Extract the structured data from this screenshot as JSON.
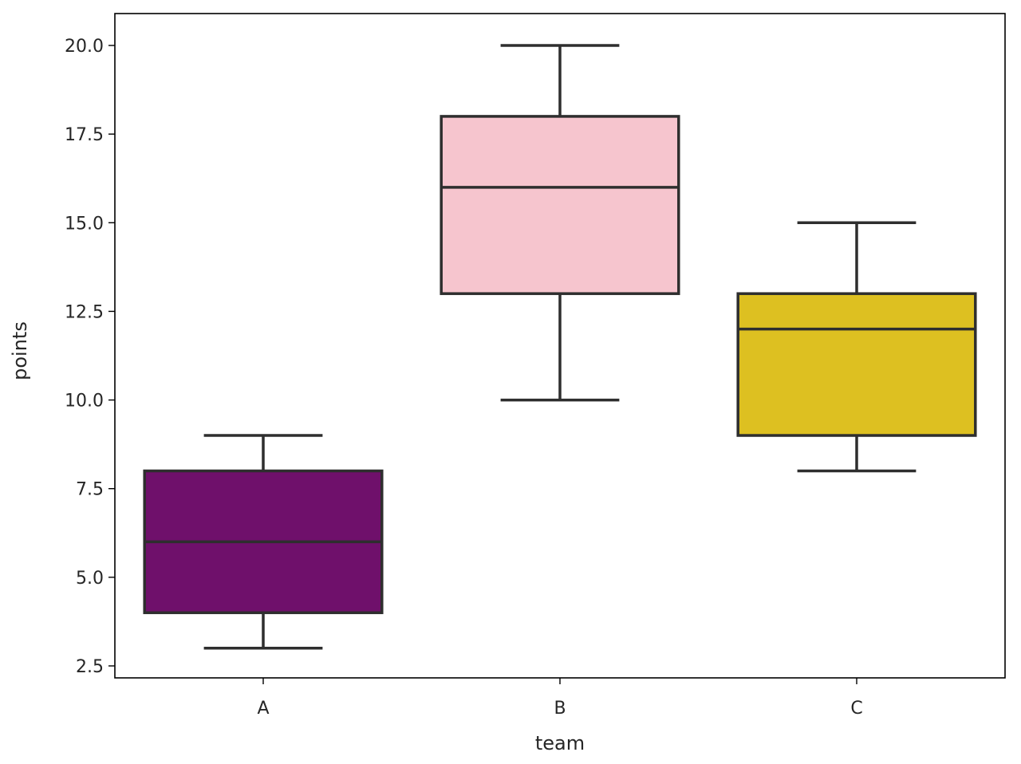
{
  "chart_data": {
    "type": "box",
    "title": "",
    "xlabel": "team",
    "ylabel": "points",
    "categories": [
      "A",
      "B",
      "C"
    ],
    "ylim": [
      2.16,
      20.9
    ],
    "yticks": [
      2.5,
      5.0,
      7.5,
      10.0,
      12.5,
      15.0,
      17.5,
      20.0
    ],
    "ytick_labels": [
      "2.5",
      "5.0",
      "7.5",
      "10.0",
      "12.5",
      "15.0",
      "17.5",
      "20.0"
    ],
    "grid": false,
    "legend": null,
    "series": [
      {
        "name": "A",
        "whisker_low": 3,
        "q1": 4,
        "median": 6,
        "q3": 8,
        "whisker_high": 9,
        "color": "#6f106b"
      },
      {
        "name": "B",
        "whisker_low": 10,
        "q1": 13,
        "median": 16,
        "q3": 18,
        "whisker_high": 20,
        "color": "#f6c5ce"
      },
      {
        "name": "C",
        "whisker_low": 8,
        "q1": 9,
        "median": 12,
        "q3": 13,
        "whisker_high": 15,
        "color": "#ddc021"
      }
    ]
  },
  "style": {
    "line_color": "#2e2e2e",
    "axis_color": "#000000"
  }
}
